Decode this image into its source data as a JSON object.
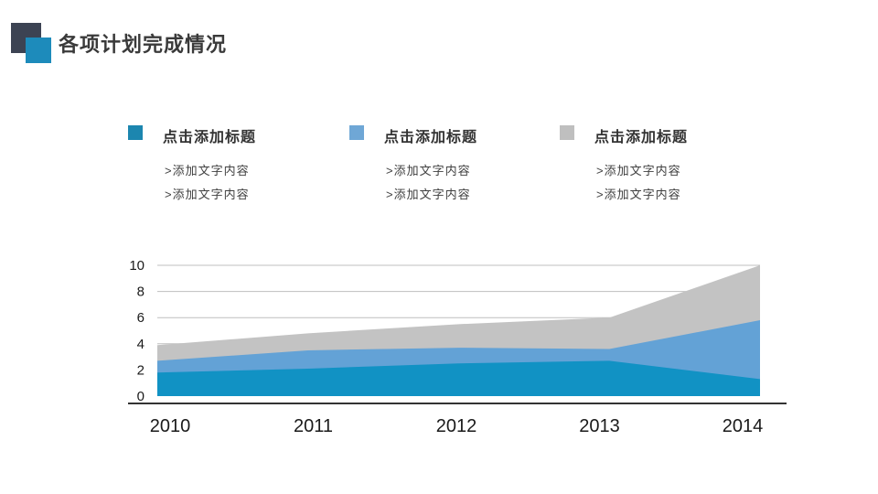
{
  "title": {
    "text": "各项计划完成情况",
    "accent_dark_color": "#3C4353",
    "accent_blue_color": "#1D8BBB"
  },
  "legend": {
    "blocks": [
      {
        "title": "点击添加标题",
        "color": "#1C86AF",
        "items": [
          ">添加文字内容",
          ">添加文字内容"
        ]
      },
      {
        "title": "点击添加标题",
        "color": "#6FA7D6",
        "items": [
          ">添加文字内容",
          ">添加文字内容"
        ]
      },
      {
        "title": "点击添加标题",
        "color": "#BFBFBF",
        "items": [
          ">添加文字内容",
          ">添加文字内容"
        ]
      }
    ]
  },
  "chart_data": {
    "type": "area",
    "stacked": true,
    "title": "",
    "xlabel": "",
    "ylabel": "",
    "categories": [
      "2010",
      "2011",
      "2012",
      "2013",
      "2014"
    ],
    "series": [
      {
        "name": "点击添加标题",
        "color": "#1192C4",
        "values": [
          1.8,
          2.1,
          2.5,
          2.7,
          1.3
        ]
      },
      {
        "name": "点击添加标题",
        "color": "#63A2D6",
        "values": [
          0.9,
          1.4,
          1.2,
          0.9,
          4.5
        ]
      },
      {
        "name": "点击添加标题",
        "color": "#C3C3C3",
        "values": [
          1.2,
          1.3,
          1.8,
          2.4,
          4.2
        ]
      }
    ],
    "stack_totals": [
      3.9,
      4.8,
      5.5,
      6.0,
      10.0
    ],
    "ylim": [
      0,
      10
    ],
    "yticks": [
      0,
      2,
      4,
      6,
      8,
      10
    ],
    "grid": true,
    "gridline_color": "#BFBFBF",
    "axis_line_color": "#333333",
    "tick_label_color": "#1A1A1A",
    "legend_position": "top"
  }
}
